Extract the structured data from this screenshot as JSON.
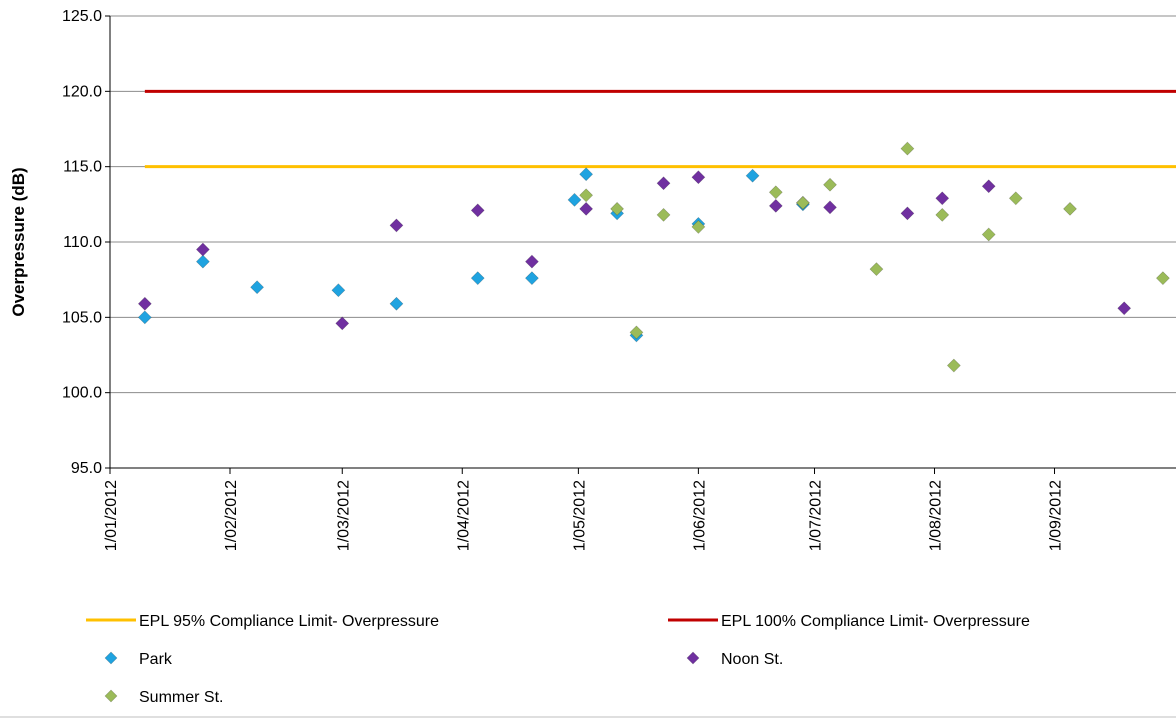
{
  "chart_data": {
    "type": "scatter",
    "ylabel": "Overpressure (dB)",
    "xlabel": "",
    "ylim": [
      95,
      125
    ],
    "yticks": [
      "95.0",
      "100.0",
      "105.0",
      "110.0",
      "115.0",
      "120.0",
      "125.0"
    ],
    "xlim": [
      "2012-01-01",
      "2012-10-01"
    ],
    "xticks": [
      {
        "date": "2012-01-01",
        "label": "1/01/2012"
      },
      {
        "date": "2012-02-01",
        "label": "1/02/2012"
      },
      {
        "date": "2012-03-01",
        "label": "1/03/2012"
      },
      {
        "date": "2012-04-01",
        "label": "1/04/2012"
      },
      {
        "date": "2012-05-01",
        "label": "1/05/2012"
      },
      {
        "date": "2012-06-01",
        "label": "1/06/2012"
      },
      {
        "date": "2012-07-01",
        "label": "1/07/2012"
      },
      {
        "date": "2012-08-01",
        "label": "1/08/2012"
      },
      {
        "date": "2012-09-01",
        "label": "1/09/2012"
      }
    ],
    "grid": "horizontal",
    "legend_position": "bottom",
    "lines": [
      {
        "name": "EPL 95% Compliance Limit- Overpressure",
        "color": "#FFC000",
        "value": 115,
        "x_start": "2012-01-10"
      },
      {
        "name": "EPL 100% Compliance Limit- Overpressure",
        "color": "#C00000",
        "value": 120,
        "x_start": "2012-01-10"
      }
    ],
    "series": [
      {
        "name": "Park",
        "color": "#1FA3E0",
        "points": [
          {
            "x": "2012-01-10",
            "y": 105.0
          },
          {
            "x": "2012-01-25",
            "y": 108.7
          },
          {
            "x": "2012-02-08",
            "y": 107.0
          },
          {
            "x": "2012-02-29",
            "y": 106.8
          },
          {
            "x": "2012-03-15",
            "y": 105.9
          },
          {
            "x": "2012-04-05",
            "y": 107.6
          },
          {
            "x": "2012-04-19",
            "y": 107.6
          },
          {
            "x": "2012-04-30",
            "y": 112.8
          },
          {
            "x": "2012-05-03",
            "y": 114.5
          },
          {
            "x": "2012-05-11",
            "y": 111.9
          },
          {
            "x": "2012-05-16",
            "y": 103.8
          },
          {
            "x": "2012-06-01",
            "y": 111.2
          },
          {
            "x": "2012-06-15",
            "y": 114.4
          },
          {
            "x": "2012-06-28",
            "y": 112.5
          }
        ]
      },
      {
        "name": "Noon St.",
        "color": "#7030A0",
        "points": [
          {
            "x": "2012-01-10",
            "y": 105.9
          },
          {
            "x": "2012-01-25",
            "y": 109.5
          },
          {
            "x": "2012-03-01",
            "y": 104.6
          },
          {
            "x": "2012-03-15",
            "y": 111.1
          },
          {
            "x": "2012-04-05",
            "y": 112.1
          },
          {
            "x": "2012-04-19",
            "y": 108.7
          },
          {
            "x": "2012-05-03",
            "y": 112.2
          },
          {
            "x": "2012-05-23",
            "y": 113.9
          },
          {
            "x": "2012-06-01",
            "y": 114.3
          },
          {
            "x": "2012-06-21",
            "y": 112.4
          },
          {
            "x": "2012-06-28",
            "y": 112.6
          },
          {
            "x": "2012-07-05",
            "y": 112.3
          },
          {
            "x": "2012-07-25",
            "y": 111.9
          },
          {
            "x": "2012-08-03",
            "y": 112.9
          },
          {
            "x": "2012-08-15",
            "y": 113.7
          },
          {
            "x": "2012-09-19",
            "y": 105.6
          }
        ]
      },
      {
        "name": "Summer St.",
        "color": "#9BBB59",
        "points": [
          {
            "x": "2012-05-03",
            "y": 113.1
          },
          {
            "x": "2012-05-11",
            "y": 112.2
          },
          {
            "x": "2012-05-16",
            "y": 104.0
          },
          {
            "x": "2012-05-23",
            "y": 111.8
          },
          {
            "x": "2012-06-01",
            "y": 111.0
          },
          {
            "x": "2012-06-21",
            "y": 113.3
          },
          {
            "x": "2012-06-28",
            "y": 112.6
          },
          {
            "x": "2012-07-05",
            "y": 113.8
          },
          {
            "x": "2012-07-17",
            "y": 108.2
          },
          {
            "x": "2012-07-25",
            "y": 116.2
          },
          {
            "x": "2012-08-03",
            "y": 111.8
          },
          {
            "x": "2012-08-06",
            "y": 101.8
          },
          {
            "x": "2012-08-15",
            "y": 110.5
          },
          {
            "x": "2012-08-22",
            "y": 112.9
          },
          {
            "x": "2012-09-05",
            "y": 112.2
          },
          {
            "x": "2012-09-29",
            "y": 107.6
          }
        ]
      }
    ]
  }
}
